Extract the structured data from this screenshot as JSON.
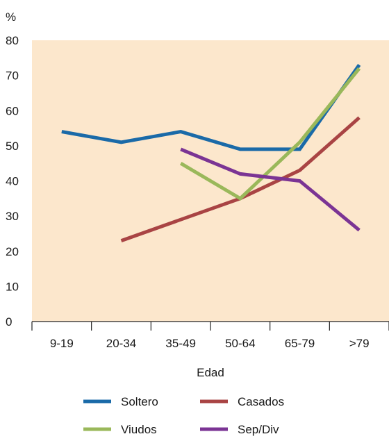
{
  "chart_data": {
    "type": "line",
    "y_unit": "%",
    "xlabel": "Edad",
    "categories": [
      "9-19",
      "20-34",
      "35-49",
      "50-64",
      "65-79",
      ">79"
    ],
    "ylim": [
      0,
      80
    ],
    "yticks": [
      0,
      10,
      20,
      30,
      40,
      50,
      60,
      70,
      80
    ],
    "grid": false,
    "plot_background": "#fce7cc",
    "legend_position": "bottom",
    "series": [
      {
        "name": "Soltero",
        "color": "#1a6aa8",
        "points": [
          [
            0,
            54
          ],
          [
            1,
            51
          ],
          [
            2,
            54
          ],
          [
            3,
            49
          ],
          [
            4,
            49
          ],
          [
            5,
            73
          ]
        ]
      },
      {
        "name": "Casados",
        "color": "#a94444",
        "points": [
          [
            1,
            23
          ],
          [
            2,
            29
          ],
          [
            3,
            35
          ],
          [
            4,
            43
          ],
          [
            5,
            58
          ]
        ]
      },
      {
        "name": "Viudos",
        "color": "#9ab85a",
        "points": [
          [
            2,
            45
          ],
          [
            3,
            35
          ],
          [
            4,
            51
          ],
          [
            5,
            72
          ]
        ]
      },
      {
        "name": "Sep/Div",
        "color": "#7b3494",
        "points": [
          [
            2,
            49
          ],
          [
            3,
            42
          ],
          [
            4,
            40
          ],
          [
            5,
            26
          ]
        ]
      }
    ]
  }
}
